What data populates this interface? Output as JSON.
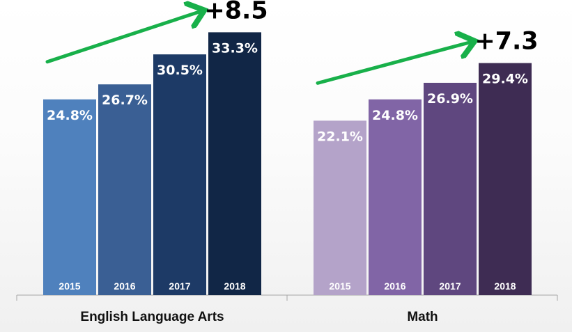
{
  "chart_data": {
    "type": "bar",
    "groups": [
      {
        "name": "English Language Arts",
        "change_label": "+8.5",
        "categories": [
          "2015",
          "2016",
          "2017",
          "2018"
        ],
        "values": [
          24.8,
          26.7,
          30.5,
          33.3
        ],
        "value_labels": [
          "24.8%",
          "26.7%",
          "30.5%",
          "33.3%"
        ],
        "colors": [
          "#4f81bd",
          "#3a5f94",
          "#1d3a66",
          "#112646"
        ]
      },
      {
        "name": "Math",
        "change_label": "+7.3",
        "categories": [
          "2015",
          "2016",
          "2017",
          "2018"
        ],
        "values": [
          22.1,
          24.8,
          26.9,
          29.4
        ],
        "value_labels": [
          "22.1%",
          "24.8%",
          "26.9%",
          "29.4%"
        ],
        "colors": [
          "#b4a3c9",
          "#8165a6",
          "#5f477f",
          "#3e2c53"
        ]
      }
    ],
    "trend_arrow_color": "#18b04a",
    "axis_color": "#a6a6a6",
    "ylim": [
      0,
      40
    ],
    "grid": false,
    "legend": "none"
  }
}
